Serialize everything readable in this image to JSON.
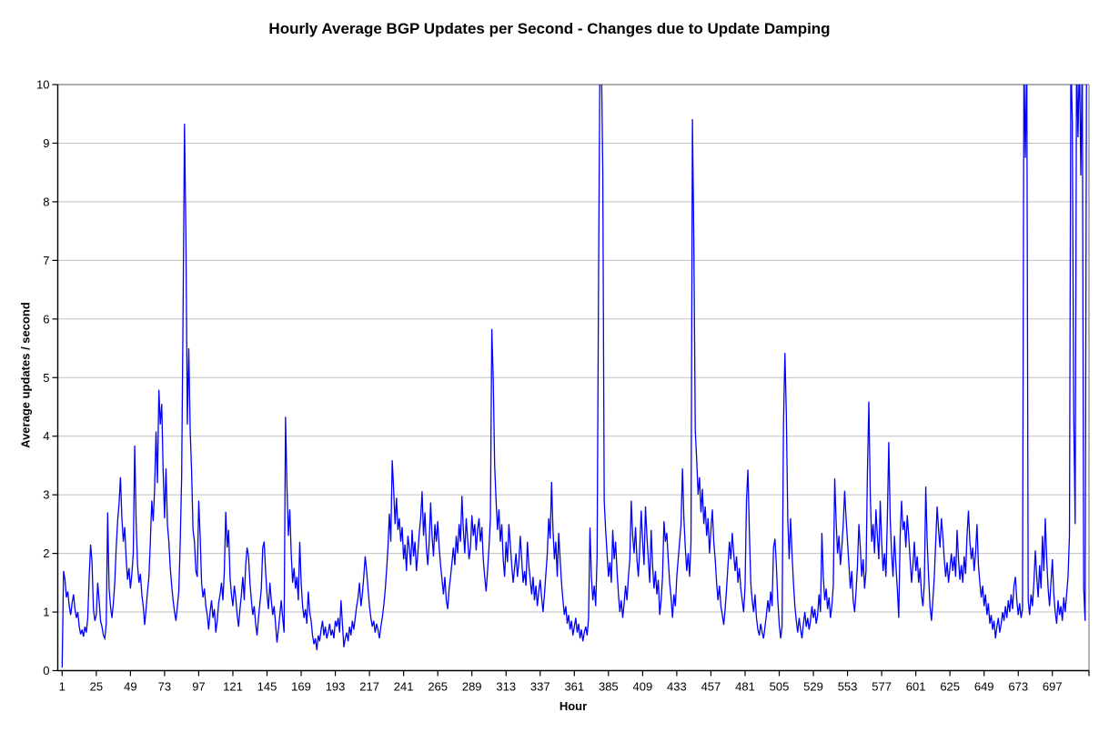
{
  "chart_data": {
    "type": "line",
    "title": "Hourly Average BGP Updates per Second - Changes due to Update Damping",
    "xlabel": "Hour",
    "ylabel": "Average updates / second",
    "xlim": [
      1,
      721
    ],
    "ylim": [
      0,
      10
    ],
    "grid": "horizontal-major",
    "legend": "none",
    "x_ticks": [
      1,
      25,
      49,
      73,
      97,
      121,
      145,
      169,
      193,
      217,
      241,
      265,
      289,
      313,
      337,
      361,
      385,
      409,
      433,
      457,
      481,
      505,
      529,
      553,
      577,
      601,
      625,
      649,
      673,
      697
    ],
    "y_ticks": [
      0,
      1,
      2,
      3,
      4,
      5,
      6,
      7,
      8,
      9,
      10
    ],
    "colors": {
      "line": "#0000ff",
      "gridline": "#c0c0c0",
      "plot_border": "#808080",
      "axis": "#000000",
      "text": "#000000",
      "background": "#ffffff"
    },
    "clip_note": "values of 10.5 represent spikes clipped at the top of the 0-10 axis",
    "clipped_at_top_hours": [
      379,
      380,
      677,
      679,
      710,
      714,
      716,
      718,
      721
    ],
    "series": [
      {
        "name": "hourly-average-bgp-updates",
        "x_start": 1,
        "x_step": 1,
        "values": [
          0.05,
          1.7,
          1.55,
          1.25,
          1.35,
          1.1,
          0.95,
          1.15,
          1.3,
          1.05,
          0.9,
          1.0,
          0.75,
          0.62,
          0.7,
          0.58,
          0.75,
          0.65,
          0.9,
          1.6,
          2.15,
          1.85,
          1.05,
          0.85,
          0.95,
          1.5,
          1.2,
          0.85,
          0.75,
          0.6,
          0.55,
          0.8,
          2.7,
          1.4,
          1.1,
          0.9,
          1.15,
          1.5,
          2.1,
          2.55,
          2.85,
          3.3,
          2.6,
          2.2,
          2.45,
          1.9,
          1.55,
          1.75,
          1.4,
          1.65,
          2.0,
          3.84,
          2.55,
          1.8,
          1.5,
          1.65,
          1.3,
          1.1,
          0.78,
          1.05,
          1.35,
          1.6,
          2.2,
          2.9,
          2.55,
          3.1,
          4.08,
          3.2,
          4.79,
          4.2,
          4.55,
          3.4,
          2.6,
          3.45,
          2.5,
          2.2,
          1.75,
          1.45,
          1.2,
          1.0,
          0.85,
          1.1,
          1.35,
          2.2,
          3.3,
          6.1,
          9.33,
          7.4,
          4.2,
          5.5,
          4.1,
          3.4,
          2.4,
          2.2,
          1.7,
          1.6,
          2.9,
          2.3,
          1.5,
          1.25,
          1.4,
          1.1,
          0.95,
          0.7,
          1.0,
          1.2,
          0.9,
          1.05,
          0.65,
          0.85,
          1.15,
          1.3,
          1.5,
          1.2,
          1.7,
          2.71,
          2.1,
          2.4,
          1.6,
          1.3,
          1.1,
          1.45,
          1.25,
          0.95,
          0.75,
          1.05,
          1.3,
          1.6,
          1.2,
          1.8,
          2.1,
          1.95,
          1.5,
          1.2,
          0.95,
          1.1,
          0.8,
          0.6,
          0.9,
          1.15,
          1.4,
          2.1,
          2.2,
          1.7,
          1.3,
          1.05,
          1.5,
          1.2,
          0.95,
          1.1,
          0.8,
          0.48,
          0.7,
          0.95,
          1.2,
          0.9,
          0.65,
          4.33,
          3.15,
          2.3,
          2.75,
          2.0,
          1.5,
          1.75,
          1.4,
          1.6,
          1.2,
          2.2,
          1.5,
          1.1,
          0.9,
          1.05,
          0.8,
          1.35,
          1.0,
          0.85,
          0.6,
          0.45,
          0.55,
          0.35,
          0.6,
          0.5,
          0.7,
          0.85,
          0.6,
          0.75,
          0.55,
          0.65,
          0.8,
          0.6,
          0.7,
          0.55,
          0.85,
          0.75,
          0.9,
          0.65,
          1.2,
          0.8,
          0.4,
          0.55,
          0.65,
          0.5,
          0.75,
          0.6,
          0.85,
          0.7,
          0.9,
          1.1,
          1.25,
          1.5,
          1.1,
          1.3,
          1.6,
          1.95,
          1.7,
          1.4,
          1.1,
          0.9,
          0.75,
          0.85,
          0.65,
          0.8,
          0.7,
          0.55,
          0.75,
          0.9,
          1.1,
          1.35,
          1.7,
          2.1,
          2.68,
          2.2,
          3.59,
          3.1,
          2.5,
          2.95,
          2.4,
          2.6,
          2.2,
          2.45,
          1.9,
          2.15,
          1.7,
          2.3,
          2.1,
          1.8,
          2.4,
          1.95,
          2.2,
          1.7,
          2.0,
          2.35,
          2.6,
          3.06,
          2.3,
          2.7,
          2.1,
          1.8,
          2.2,
          2.87,
          2.3,
          1.95,
          2.5,
          2.2,
          2.55,
          2.1,
          1.8,
          1.55,
          1.3,
          1.6,
          1.2,
          1.05,
          1.4,
          1.6,
          1.85,
          2.1,
          1.8,
          2.3,
          2.0,
          2.5,
          2.2,
          2.98,
          2.4,
          2.0,
          2.6,
          2.25,
          1.9,
          2.1,
          2.65,
          2.3,
          2.5,
          2.05,
          2.4,
          2.6,
          2.2,
          2.45,
          1.9,
          1.6,
          1.35,
          1.7,
          2.1,
          2.6,
          5.83,
          4.97,
          3.5,
          2.9,
          2.4,
          2.75,
          2.2,
          2.5,
          1.9,
          1.6,
          2.2,
          1.85,
          2.5,
          2.15,
          1.8,
          1.5,
          1.75,
          2.0,
          1.6,
          1.85,
          2.3,
          1.9,
          1.5,
          1.7,
          1.45,
          2.2,
          1.8,
          1.55,
          1.3,
          1.6,
          1.2,
          1.45,
          1.1,
          1.35,
          1.55,
          1.25,
          1.0,
          1.3,
          1.65,
          2.0,
          2.6,
          2.25,
          3.22,
          2.4,
          1.9,
          2.2,
          1.6,
          2.35,
          1.9,
          1.5,
          1.2,
          0.95,
          1.1,
          0.8,
          0.95,
          0.7,
          0.85,
          0.6,
          0.75,
          0.9,
          0.65,
          0.8,
          0.55,
          0.7,
          0.5,
          0.65,
          0.75,
          0.6,
          0.9,
          2.44,
          1.6,
          1.2,
          1.45,
          1.1,
          1.95,
          6.6,
          10.5,
          10.5,
          8.5,
          2.9,
          2.4,
          2.0,
          1.6,
          1.85,
          1.5,
          2.4,
          1.9,
          2.2,
          1.7,
          1.3,
          1.0,
          1.2,
          0.9,
          1.15,
          1.45,
          1.2,
          1.6,
          1.9,
          2.9,
          2.3,
          2.0,
          2.45,
          1.9,
          1.6,
          2.1,
          2.73,
          2.2,
          1.8,
          2.8,
          2.3,
          1.9,
          1.5,
          2.4,
          1.8,
          1.4,
          1.7,
          1.3,
          1.55,
          0.95,
          1.2,
          1.6,
          2.55,
          2.2,
          2.35,
          1.9,
          1.5,
          1.25,
          0.9,
          1.3,
          1.1,
          1.6,
          1.9,
          2.2,
          2.5,
          3.45,
          2.6,
          2.1,
          1.7,
          2.0,
          1.6,
          2.2,
          9.41,
          7.3,
          4.1,
          3.59,
          3.0,
          3.3,
          2.7,
          3.1,
          2.5,
          2.8,
          2.3,
          2.6,
          2.0,
          2.4,
          2.75,
          2.2,
          1.9,
          1.5,
          1.2,
          1.45,
          1.1,
          0.95,
          0.78,
          1.05,
          1.4,
          1.8,
          2.2,
          1.9,
          2.35,
          2.0,
          1.7,
          1.95,
          1.5,
          1.75,
          1.4,
          1.2,
          1.0,
          1.45,
          2.9,
          3.43,
          2.4,
          1.5,
          1.2,
          1.0,
          1.3,
          0.9,
          0.7,
          0.6,
          0.8,
          0.65,
          0.55,
          0.75,
          0.95,
          1.2,
          1.0,
          1.35,
          1.1,
          2.1,
          2.25,
          1.8,
          1.2,
          0.8,
          0.55,
          0.75,
          4.2,
          5.42,
          4.39,
          2.6,
          1.9,
          2.6,
          2.0,
          1.5,
          1.1,
          0.85,
          0.65,
          0.9,
          0.7,
          0.55,
          0.8,
          1.0,
          0.75,
          0.9,
          0.7,
          0.85,
          1.1,
          0.9,
          1.05,
          0.8,
          0.95,
          1.3,
          1.0,
          2.35,
          1.6,
          1.2,
          1.4,
          1.05,
          1.25,
          0.9,
          1.1,
          1.45,
          3.28,
          2.55,
          2.0,
          2.3,
          1.8,
          2.1,
          2.5,
          3.07,
          2.6,
          2.2,
          1.8,
          1.4,
          1.7,
          1.2,
          1.0,
          1.35,
          1.8,
          2.5,
          2.1,
          1.6,
          1.9,
          1.4,
          1.7,
          3.4,
          4.59,
          3.0,
          2.2,
          2.5,
          2.0,
          2.75,
          2.3,
          1.9,
          2.9,
          2.2,
          1.7,
          2.0,
          1.6,
          2.6,
          3.9,
          2.6,
          2.0,
          1.6,
          2.3,
          1.8,
          1.4,
          0.9,
          2.3,
          2.9,
          2.4,
          2.55,
          2.1,
          2.65,
          2.3,
          1.9,
          1.5,
          1.8,
          2.2,
          1.7,
          1.95,
          1.5,
          1.75,
          1.3,
          1.1,
          1.5,
          3.14,
          2.2,
          1.6,
          1.1,
          0.85,
          1.2,
          1.6,
          2.2,
          2.8,
          2.4,
          2.1,
          2.6,
          2.3,
          1.9,
          1.6,
          1.85,
          1.5,
          1.75,
          2.0,
          1.7,
          1.95,
          1.6,
          2.4,
          1.9,
          1.55,
          1.8,
          1.5,
          1.95,
          1.65,
          2.3,
          2.73,
          2.2,
          1.9,
          2.1,
          1.7,
          2.0,
          2.5,
          1.8,
          1.5,
          1.25,
          1.45,
          1.1,
          1.3,
          0.95,
          1.15,
          0.8,
          0.95,
          0.7,
          0.85,
          0.55,
          0.75,
          0.9,
          0.65,
          0.8,
          1.0,
          0.85,
          1.1,
          0.9,
          1.2,
          1.0,
          1.3,
          1.05,
          1.45,
          1.6,
          1.2,
          0.95,
          1.15,
          0.9,
          1.05,
          10.5,
          8.75,
          10.5,
          1.2,
          0.95,
          1.3,
          1.1,
          1.5,
          2.05,
          1.6,
          1.25,
          1.8,
          1.4,
          2.3,
          1.7,
          2.6,
          1.9,
          1.4,
          1.1,
          1.5,
          1.9,
          1.3,
          1.0,
          0.8,
          1.2,
          0.95,
          1.1,
          0.85,
          1.25,
          1.0,
          1.3,
          1.6,
          2.3,
          10.5,
          9.35,
          4.4,
          2.5,
          10.5,
          9.1,
          10.5,
          8.45,
          10.5,
          1.4,
          0.85,
          10.5
        ]
      }
    ]
  }
}
